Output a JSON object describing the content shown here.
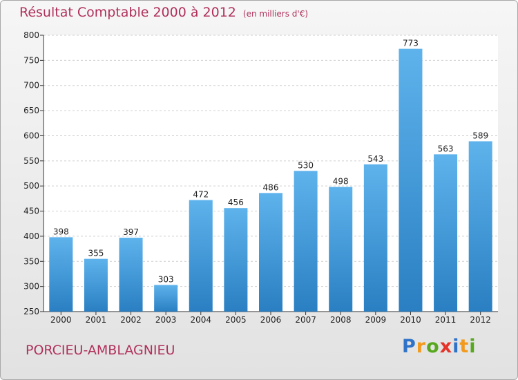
{
  "title": "Résultat Comptable 2000 à 2012",
  "subtitle": "(en milliers d'€)",
  "place": "PORCIEU-AMBLAGNIEU",
  "brand": {
    "letters": [
      "P",
      "r",
      "o",
      "x",
      "i",
      "t",
      "i"
    ],
    "colors": [
      "#2f73c8",
      "#f29a1e",
      "#58a81f",
      "#e5332a",
      "#2f73c8",
      "#f29a1e",
      "#58a81f"
    ]
  },
  "colors": {
    "title": "#b0305a",
    "bar_top": "#5eb3ec",
    "bar_bottom": "#2a7fc2"
  },
  "chart_data": {
    "type": "bar",
    "categories": [
      "2000",
      "2001",
      "2002",
      "2003",
      "2004",
      "2005",
      "2006",
      "2007",
      "2008",
      "2009",
      "2010",
      "2011",
      "2012"
    ],
    "values": [
      398,
      355,
      397,
      303,
      472,
      456,
      486,
      530,
      498,
      543,
      773,
      563,
      589
    ],
    "ylim": [
      250,
      800
    ],
    "yticks": [
      250,
      300,
      350,
      400,
      450,
      500,
      550,
      600,
      650,
      700,
      750,
      800
    ],
    "grid": true
  }
}
